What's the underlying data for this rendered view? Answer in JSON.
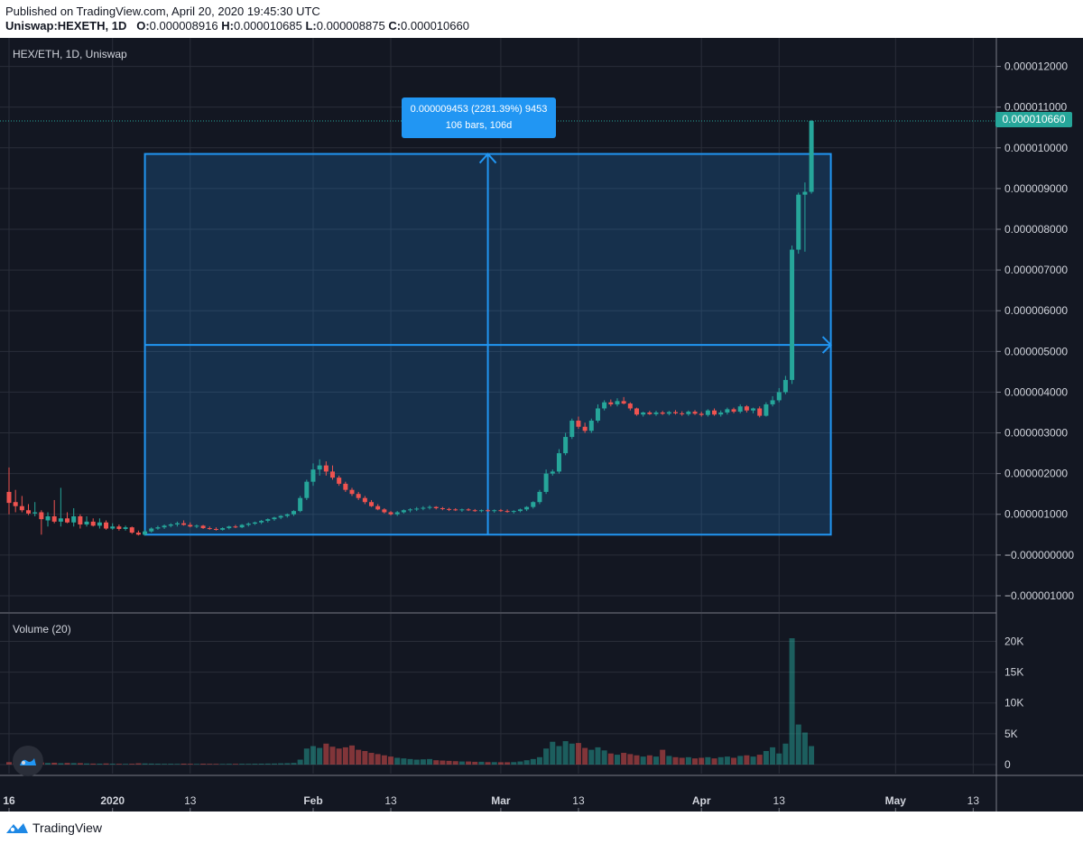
{
  "header": {
    "published": "Published on TradingView.com, April 20, 2020 19:45:30 UTC",
    "symbol_line": "Uniswap:HEXETH, 1D",
    "ohlc": {
      "o_label": "O:",
      "o": "0.000008916",
      "h_label": "H:",
      "h": "0.000010685",
      "l_label": "L:",
      "l": "0.000008875",
      "c_label": "C:",
      "c": "0.000010660"
    }
  },
  "chart": {
    "symbol_label": "HEX/ETH, 1D, Uniswap",
    "volume_label": "Volume (20)",
    "last_price_label": "0.000010660",
    "measure": {
      "line1": "0.000009453 (2281.39%) 9453",
      "line2": "106 bars, 106d"
    }
  },
  "footer": {
    "brand": "TradingView"
  },
  "colors": {
    "bg": "#131722",
    "up": "#26a69a",
    "down": "#ef5350",
    "accent": "#2196f3",
    "grid": "#2a2e39",
    "text": "#d1d4dc"
  },
  "chart_data": {
    "type": "candlestick",
    "title": "HEX/ETH, 1D, Uniswap",
    "price_axis": {
      "ticks": [
        "0.000012000",
        "0.000011000",
        "0.000010000",
        "0.000009000",
        "0.000008000",
        "0.000007000",
        "0.000006000",
        "0.000005000",
        "0.000004000",
        "0.000003000",
        "0.000002000",
        "0.000001000",
        "−0.000000000",
        "−0.000001000"
      ],
      "range": [
        -1.4e-06,
        1.27e-05
      ]
    },
    "time_axis": {
      "ticks": [
        {
          "label": "16",
          "bold": true,
          "day": 0
        },
        {
          "label": "2020",
          "bold": true,
          "day": 16
        },
        {
          "label": "13",
          "bold": false,
          "day": 28
        },
        {
          "label": "Feb",
          "bold": true,
          "day": 47
        },
        {
          "label": "13",
          "bold": false,
          "day": 59
        },
        {
          "label": "Mar",
          "bold": true,
          "day": 76
        },
        {
          "label": "13",
          "bold": false,
          "day": 88
        },
        {
          "label": "Apr",
          "bold": true,
          "day": 107
        },
        {
          "label": "13",
          "bold": false,
          "day": 119
        },
        {
          "label": "May",
          "bold": true,
          "day": 137
        },
        {
          "label": "13",
          "bold": false,
          "day": 149
        }
      ]
    },
    "volume_axis": {
      "ticks": [
        "20K",
        "15K",
        "10K",
        "5K",
        "0"
      ],
      "range": [
        0,
        23000
      ]
    },
    "measure_range": {
      "start_day": 21,
      "end_day": 127,
      "low": 5e-07,
      "high": 9.85e-06,
      "mid": 5.16e-06
    },
    "last_price": 1.066e-05,
    "candles": [
      {
        "o": 1.55,
        "h": 2.15,
        "l": 1.0,
        "c": 1.28,
        "v": 400
      },
      {
        "o": 1.3,
        "h": 1.6,
        "l": 1.05,
        "c": 1.2,
        "v": 300
      },
      {
        "o": 1.2,
        "h": 1.45,
        "l": 1.05,
        "c": 1.1,
        "v": 250
      },
      {
        "o": 1.1,
        "h": 1.25,
        "l": 0.98,
        "c": 1.02,
        "v": 280
      },
      {
        "o": 1.02,
        "h": 1.3,
        "l": 0.95,
        "c": 1.05,
        "v": 200
      },
      {
        "o": 1.05,
        "h": 1.1,
        "l": 0.5,
        "c": 0.88,
        "v": 350
      },
      {
        "o": 0.85,
        "h": 1.05,
        "l": 0.7,
        "c": 0.95,
        "v": 250
      },
      {
        "o": 0.95,
        "h": 1.35,
        "l": 0.78,
        "c": 0.82,
        "v": 300
      },
      {
        "o": 0.82,
        "h": 1.65,
        "l": 0.7,
        "c": 0.9,
        "v": 220
      },
      {
        "o": 0.9,
        "h": 1.05,
        "l": 0.78,
        "c": 0.8,
        "v": 260
      },
      {
        "o": 0.8,
        "h": 1.15,
        "l": 0.7,
        "c": 0.95,
        "v": 240
      },
      {
        "o": 0.95,
        "h": 1.0,
        "l": 0.65,
        "c": 0.75,
        "v": 230
      },
      {
        "o": 0.75,
        "h": 0.95,
        "l": 0.7,
        "c": 0.82,
        "v": 180
      },
      {
        "o": 0.82,
        "h": 0.9,
        "l": 0.7,
        "c": 0.72,
        "v": 160
      },
      {
        "o": 0.72,
        "h": 0.9,
        "l": 0.65,
        "c": 0.8,
        "v": 150
      },
      {
        "o": 0.8,
        "h": 0.85,
        "l": 0.62,
        "c": 0.65,
        "v": 180
      },
      {
        "o": 0.65,
        "h": 0.78,
        "l": 0.62,
        "c": 0.7,
        "v": 140
      },
      {
        "o": 0.7,
        "h": 0.75,
        "l": 0.6,
        "c": 0.64,
        "v": 120
      },
      {
        "o": 0.64,
        "h": 0.72,
        "l": 0.6,
        "c": 0.68,
        "v": 110
      },
      {
        "o": 0.68,
        "h": 0.7,
        "l": 0.52,
        "c": 0.55,
        "v": 130
      },
      {
        "o": 0.55,
        "h": 0.6,
        "l": 0.48,
        "c": 0.5,
        "v": 200
      },
      {
        "o": 0.5,
        "h": 0.62,
        "l": 0.48,
        "c": 0.58,
        "v": 180
      },
      {
        "o": 0.58,
        "h": 0.68,
        "l": 0.55,
        "c": 0.65,
        "v": 160
      },
      {
        "o": 0.65,
        "h": 0.72,
        "l": 0.62,
        "c": 0.68,
        "v": 140
      },
      {
        "o": 0.68,
        "h": 0.75,
        "l": 0.64,
        "c": 0.72,
        "v": 120
      },
      {
        "o": 0.72,
        "h": 0.78,
        "l": 0.68,
        "c": 0.75,
        "v": 130
      },
      {
        "o": 0.75,
        "h": 0.82,
        "l": 0.7,
        "c": 0.78,
        "v": 110
      },
      {
        "o": 0.78,
        "h": 0.85,
        "l": 0.72,
        "c": 0.74,
        "v": 150
      },
      {
        "o": 0.74,
        "h": 0.8,
        "l": 0.68,
        "c": 0.7,
        "v": 120
      },
      {
        "o": 0.7,
        "h": 0.75,
        "l": 0.66,
        "c": 0.72,
        "v": 100
      },
      {
        "o": 0.72,
        "h": 0.74,
        "l": 0.64,
        "c": 0.66,
        "v": 140
      },
      {
        "o": 0.66,
        "h": 0.7,
        "l": 0.62,
        "c": 0.64,
        "v": 120
      },
      {
        "o": 0.64,
        "h": 0.68,
        "l": 0.6,
        "c": 0.62,
        "v": 110
      },
      {
        "o": 0.62,
        "h": 0.68,
        "l": 0.6,
        "c": 0.66,
        "v": 100
      },
      {
        "o": 0.66,
        "h": 0.72,
        "l": 0.63,
        "c": 0.7,
        "v": 120
      },
      {
        "o": 0.7,
        "h": 0.74,
        "l": 0.66,
        "c": 0.68,
        "v": 110
      },
      {
        "o": 0.68,
        "h": 0.76,
        "l": 0.66,
        "c": 0.74,
        "v": 130
      },
      {
        "o": 0.74,
        "h": 0.8,
        "l": 0.7,
        "c": 0.77,
        "v": 120
      },
      {
        "o": 0.77,
        "h": 0.82,
        "l": 0.74,
        "c": 0.8,
        "v": 140
      },
      {
        "o": 0.8,
        "h": 0.86,
        "l": 0.76,
        "c": 0.84,
        "v": 150
      },
      {
        "o": 0.84,
        "h": 0.9,
        "l": 0.8,
        "c": 0.88,
        "v": 160
      },
      {
        "o": 0.88,
        "h": 0.94,
        "l": 0.84,
        "c": 0.92,
        "v": 170
      },
      {
        "o": 0.92,
        "h": 0.98,
        "l": 0.88,
        "c": 0.96,
        "v": 200
      },
      {
        "o": 0.96,
        "h": 1.02,
        "l": 0.92,
        "c": 1.0,
        "v": 220
      },
      {
        "o": 1.0,
        "h": 1.1,
        "l": 0.96,
        "c": 1.08,
        "v": 260
      },
      {
        "o": 1.08,
        "h": 1.45,
        "l": 1.05,
        "c": 1.4,
        "v": 800
      },
      {
        "o": 1.4,
        "h": 1.85,
        "l": 1.35,
        "c": 1.8,
        "v": 2600
      },
      {
        "o": 1.8,
        "h": 2.25,
        "l": 1.7,
        "c": 2.1,
        "v": 3000
      },
      {
        "o": 2.1,
        "h": 2.35,
        "l": 1.95,
        "c": 2.2,
        "v": 2700
      },
      {
        "o": 2.2,
        "h": 2.3,
        "l": 1.95,
        "c": 2.05,
        "v": 3400
      },
      {
        "o": 2.05,
        "h": 2.2,
        "l": 1.85,
        "c": 1.9,
        "v": 2900
      },
      {
        "o": 1.9,
        "h": 1.95,
        "l": 1.7,
        "c": 1.75,
        "v": 2600
      },
      {
        "o": 1.75,
        "h": 1.8,
        "l": 1.55,
        "c": 1.6,
        "v": 2800
      },
      {
        "o": 1.6,
        "h": 1.65,
        "l": 1.45,
        "c": 1.5,
        "v": 3100
      },
      {
        "o": 1.5,
        "h": 1.55,
        "l": 1.35,
        "c": 1.4,
        "v": 2400
      },
      {
        "o": 1.4,
        "h": 1.45,
        "l": 1.25,
        "c": 1.3,
        "v": 2200
      },
      {
        "o": 1.3,
        "h": 1.35,
        "l": 1.18,
        "c": 1.2,
        "v": 1900
      },
      {
        "o": 1.2,
        "h": 1.25,
        "l": 1.1,
        "c": 1.12,
        "v": 1700
      },
      {
        "o": 1.12,
        "h": 1.15,
        "l": 1.02,
        "c": 1.05,
        "v": 1500
      },
      {
        "o": 1.05,
        "h": 1.08,
        "l": 0.97,
        "c": 1.0,
        "v": 1300
      },
      {
        "o": 1.0,
        "h": 1.08,
        "l": 0.96,
        "c": 1.05,
        "v": 1100
      },
      {
        "o": 1.05,
        "h": 1.12,
        "l": 1.02,
        "c": 1.1,
        "v": 1000
      },
      {
        "o": 1.1,
        "h": 1.15,
        "l": 1.05,
        "c": 1.12,
        "v": 900
      },
      {
        "o": 1.12,
        "h": 1.18,
        "l": 1.08,
        "c": 1.14,
        "v": 800
      },
      {
        "o": 1.14,
        "h": 1.2,
        "l": 1.1,
        "c": 1.16,
        "v": 850
      },
      {
        "o": 1.16,
        "h": 1.22,
        "l": 1.12,
        "c": 1.18,
        "v": 900
      },
      {
        "o": 1.18,
        "h": 1.2,
        "l": 1.12,
        "c": 1.15,
        "v": 700
      },
      {
        "o": 1.15,
        "h": 1.18,
        "l": 1.1,
        "c": 1.13,
        "v": 650
      },
      {
        "o": 1.13,
        "h": 1.16,
        "l": 1.08,
        "c": 1.12,
        "v": 600
      },
      {
        "o": 1.12,
        "h": 1.15,
        "l": 1.08,
        "c": 1.1,
        "v": 550
      },
      {
        "o": 1.1,
        "h": 1.14,
        "l": 1.06,
        "c": 1.12,
        "v": 500
      },
      {
        "o": 1.12,
        "h": 1.15,
        "l": 1.08,
        "c": 1.1,
        "v": 500
      },
      {
        "o": 1.1,
        "h": 1.13,
        "l": 1.06,
        "c": 1.08,
        "v": 450
      },
      {
        "o": 1.08,
        "h": 1.12,
        "l": 1.05,
        "c": 1.1,
        "v": 450
      },
      {
        "o": 1.1,
        "h": 1.13,
        "l": 1.06,
        "c": 1.08,
        "v": 400
      },
      {
        "o": 1.08,
        "h": 1.12,
        "l": 1.04,
        "c": 1.1,
        "v": 400
      },
      {
        "o": 1.1,
        "h": 1.13,
        "l": 1.06,
        "c": 1.08,
        "v": 380
      },
      {
        "o": 1.08,
        "h": 1.12,
        "l": 1.04,
        "c": 1.06,
        "v": 380
      },
      {
        "o": 1.06,
        "h": 1.1,
        "l": 1.02,
        "c": 1.08,
        "v": 400
      },
      {
        "o": 1.08,
        "h": 1.14,
        "l": 1.05,
        "c": 1.12,
        "v": 500
      },
      {
        "o": 1.12,
        "h": 1.2,
        "l": 1.08,
        "c": 1.18,
        "v": 700
      },
      {
        "o": 1.18,
        "h": 1.32,
        "l": 1.14,
        "c": 1.3,
        "v": 900
      },
      {
        "o": 1.3,
        "h": 1.6,
        "l": 1.25,
        "c": 1.55,
        "v": 1200
      },
      {
        "o": 1.55,
        "h": 2.1,
        "l": 1.5,
        "c": 2.0,
        "v": 2600
      },
      {
        "o": 2.0,
        "h": 2.1,
        "l": 1.95,
        "c": 2.05,
        "v": 3700
      },
      {
        "o": 2.05,
        "h": 2.6,
        "l": 2.0,
        "c": 2.5,
        "v": 3000
      },
      {
        "o": 2.5,
        "h": 3.0,
        "l": 2.45,
        "c": 2.9,
        "v": 3800
      },
      {
        "o": 2.9,
        "h": 3.35,
        "l": 2.85,
        "c": 3.3,
        "v": 3400
      },
      {
        "o": 3.3,
        "h": 3.4,
        "l": 3.1,
        "c": 3.15,
        "v": 3500
      },
      {
        "o": 3.15,
        "h": 3.25,
        "l": 3.0,
        "c": 3.05,
        "v": 2700
      },
      {
        "o": 3.05,
        "h": 3.35,
        "l": 3.0,
        "c": 3.3,
        "v": 2400
      },
      {
        "o": 3.3,
        "h": 3.7,
        "l": 3.25,
        "c": 3.6,
        "v": 2800
      },
      {
        "o": 3.6,
        "h": 3.8,
        "l": 3.55,
        "c": 3.75,
        "v": 2300
      },
      {
        "o": 3.75,
        "h": 3.82,
        "l": 3.65,
        "c": 3.7,
        "v": 1800
      },
      {
        "o": 3.7,
        "h": 3.85,
        "l": 3.65,
        "c": 3.78,
        "v": 1600
      },
      {
        "o": 3.78,
        "h": 3.88,
        "l": 3.7,
        "c": 3.72,
        "v": 1900
      },
      {
        "o": 3.72,
        "h": 3.75,
        "l": 3.55,
        "c": 3.6,
        "v": 1700
      },
      {
        "o": 3.6,
        "h": 3.62,
        "l": 3.42,
        "c": 3.45,
        "v": 1500
      },
      {
        "o": 3.45,
        "h": 3.52,
        "l": 3.4,
        "c": 3.5,
        "v": 1300
      },
      {
        "o": 3.5,
        "h": 3.54,
        "l": 3.44,
        "c": 3.46,
        "v": 1500
      },
      {
        "o": 3.46,
        "h": 3.54,
        "l": 3.42,
        "c": 3.5,
        "v": 1300
      },
      {
        "o": 3.5,
        "h": 3.54,
        "l": 3.44,
        "c": 3.47,
        "v": 2400
      },
      {
        "o": 3.47,
        "h": 3.54,
        "l": 3.43,
        "c": 3.51,
        "v": 1400
      },
      {
        "o": 3.51,
        "h": 3.56,
        "l": 3.45,
        "c": 3.48,
        "v": 1200
      },
      {
        "o": 3.48,
        "h": 3.53,
        "l": 3.42,
        "c": 3.46,
        "v": 1100
      },
      {
        "o": 3.46,
        "h": 3.55,
        "l": 3.42,
        "c": 3.52,
        "v": 1200
      },
      {
        "o": 3.52,
        "h": 3.56,
        "l": 3.44,
        "c": 3.47,
        "v": 1000
      },
      {
        "o": 3.47,
        "h": 3.52,
        "l": 3.4,
        "c": 3.44,
        "v": 1100
      },
      {
        "o": 3.44,
        "h": 3.58,
        "l": 3.4,
        "c": 3.55,
        "v": 1200
      },
      {
        "o": 3.55,
        "h": 3.6,
        "l": 3.42,
        "c": 3.45,
        "v": 1000
      },
      {
        "o": 3.45,
        "h": 3.55,
        "l": 3.4,
        "c": 3.5,
        "v": 1200
      },
      {
        "o": 3.5,
        "h": 3.62,
        "l": 3.45,
        "c": 3.58,
        "v": 1300
      },
      {
        "o": 3.58,
        "h": 3.62,
        "l": 3.48,
        "c": 3.52,
        "v": 1100
      },
      {
        "o": 3.52,
        "h": 3.7,
        "l": 3.48,
        "c": 3.65,
        "v": 1400
      },
      {
        "o": 3.65,
        "h": 3.68,
        "l": 3.5,
        "c": 3.55,
        "v": 1500
      },
      {
        "o": 3.55,
        "h": 3.62,
        "l": 3.48,
        "c": 3.6,
        "v": 1300
      },
      {
        "o": 3.6,
        "h": 3.65,
        "l": 3.38,
        "c": 3.42,
        "v": 1600
      },
      {
        "o": 3.42,
        "h": 3.75,
        "l": 3.4,
        "c": 3.7,
        "v": 2200
      },
      {
        "o": 3.7,
        "h": 3.9,
        "l": 3.65,
        "c": 3.8,
        "v": 2800
      },
      {
        "o": 3.8,
        "h": 4.1,
        "l": 3.75,
        "c": 4.0,
        "v": 1800
      },
      {
        "o": 4.0,
        "h": 4.4,
        "l": 3.95,
        "c": 4.3,
        "v": 3400
      },
      {
        "o": 4.3,
        "h": 7.6,
        "l": 4.2,
        "c": 7.5,
        "v": 20500
      },
      {
        "o": 7.5,
        "h": 8.9,
        "l": 7.4,
        "c": 8.85,
        "v": 6500
      },
      {
        "o": 8.85,
        "h": 9.15,
        "l": 7.45,
        "c": 8.92,
        "v": 5200
      },
      {
        "o": 8.92,
        "h": 10.685,
        "l": 8.875,
        "c": 10.66,
        "v": 3000
      }
    ]
  }
}
